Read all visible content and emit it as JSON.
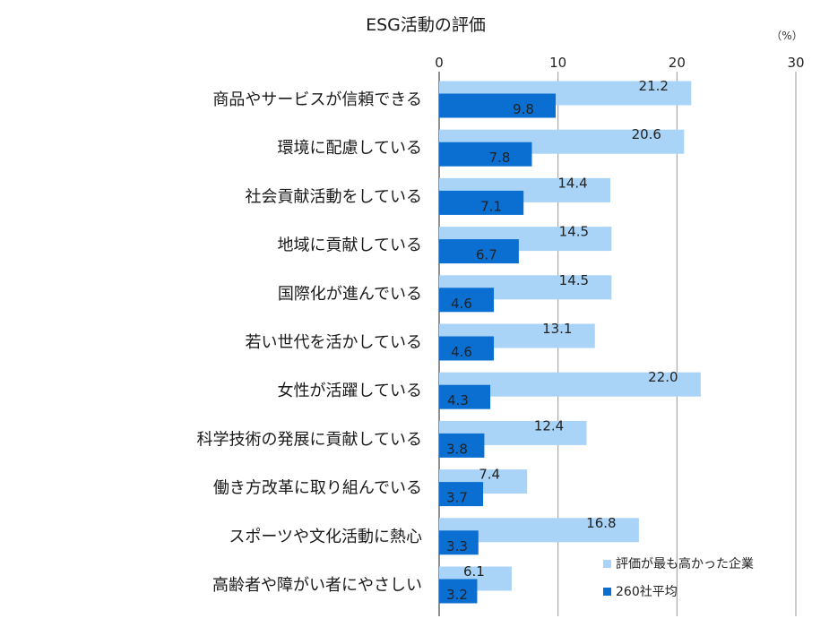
{
  "chart_data": {
    "type": "bar",
    "orientation": "horizontal",
    "title": "ESG活動の評価",
    "unit": "（%）",
    "xlim": [
      0,
      30
    ],
    "xticks": [
      0,
      10,
      20,
      30
    ],
    "grid": true,
    "legend_position": "bottom-right",
    "categories": [
      "商品やサービスが信頼できる",
      "環境に配慮している",
      "社会貢献活動をしている",
      "地域に貢献している",
      "国際化が進んでいる",
      "若い世代を活かしている",
      "女性が活躍している",
      "科学技術の発展に貢献している",
      "働き方改革に取り組んでいる",
      "スポーツや文化活動に熱心",
      "高齢者や障がい者にやさしい"
    ],
    "series": [
      {
        "name": "評価が最も高かった企業",
        "color": "#a9d4f7",
        "values": [
          21.2,
          20.6,
          14.4,
          14.5,
          14.5,
          13.1,
          22.0,
          12.4,
          7.4,
          16.8,
          6.1
        ],
        "labels": [
          "21.2",
          "20.6",
          "14.4",
          "14.5",
          "14.5",
          "13.1",
          "22.0",
          "12.4",
          "7.4",
          "16.8",
          "6.1"
        ]
      },
      {
        "name": "260社平均",
        "color": "#0a6fd1",
        "values": [
          9.8,
          7.8,
          7.1,
          6.7,
          4.6,
          4.6,
          4.3,
          3.8,
          3.7,
          3.3,
          3.2
        ],
        "labels": [
          "9.8",
          "7.8",
          "7.1",
          "6.7",
          "4.6",
          "4.6",
          "4.3",
          "3.8",
          "3.7",
          "3.3",
          "3.2"
        ]
      }
    ]
  }
}
